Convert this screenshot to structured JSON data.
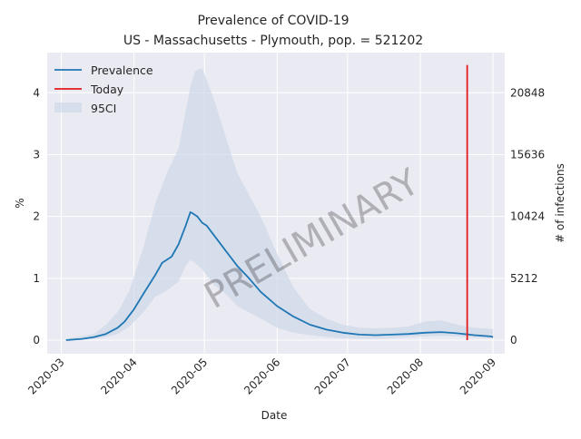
{
  "chart_data": {
    "type": "line",
    "title_line1": "Prevalence of COVID-19",
    "title_line2": "US - Massachusetts - Plymouth, pop. = 521202",
    "xlabel": "Date",
    "ylabel": "%",
    "ylabel_right": "# of infections",
    "watermark": "PRELIMINARY",
    "x_ticks": [
      "2020-03",
      "2020-04",
      "2020-05",
      "2020-06",
      "2020-07",
      "2020-08",
      "2020-09"
    ],
    "y_ticks": [
      0,
      1,
      2,
      3,
      4
    ],
    "y_ticks_right": [
      "0",
      "5212",
      "10424",
      "15636",
      "20848"
    ],
    "xlim": [
      "2020-02-24",
      "2020-09-06"
    ],
    "ylim": [
      -0.22,
      4.65
    ],
    "legend": {
      "placement": "top-left",
      "entries": [
        {
          "label": "Prevalence",
          "color": "#1f77b4",
          "kind": "line"
        },
        {
          "label": "Today",
          "color": "#e41a1c",
          "kind": "line"
        },
        {
          "label": "95CI",
          "color": "#c8d4e6",
          "kind": "patch"
        }
      ]
    },
    "today": {
      "date": "2020-08-21",
      "ymin": 0,
      "ymax": 4.45
    },
    "series": [
      {
        "name": "Prevalence",
        "color": "#1f77b4",
        "x": [
          "2020-03-03",
          "2020-03-10",
          "2020-03-15",
          "2020-03-20",
          "2020-03-25",
          "2020-03-28",
          "2020-04-01",
          "2020-04-05",
          "2020-04-10",
          "2020-04-13",
          "2020-04-17",
          "2020-04-20",
          "2020-04-23",
          "2020-04-25",
          "2020-04-26",
          "2020-04-28",
          "2020-04-30",
          "2020-05-02",
          "2020-05-04",
          "2020-05-07",
          "2020-05-10",
          "2020-05-15",
          "2020-05-20",
          "2020-05-25",
          "2020-06-01",
          "2020-06-08",
          "2020-06-15",
          "2020-06-22",
          "2020-06-29",
          "2020-07-06",
          "2020-07-13",
          "2020-07-20",
          "2020-07-27",
          "2020-08-03",
          "2020-08-10",
          "2020-08-17",
          "2020-08-24",
          "2020-08-31",
          "2020-09-01"
        ],
        "values": [
          0.0,
          0.02,
          0.05,
          0.1,
          0.2,
          0.3,
          0.5,
          0.75,
          1.05,
          1.25,
          1.35,
          1.55,
          1.85,
          2.07,
          2.05,
          2.0,
          1.9,
          1.85,
          1.75,
          1.6,
          1.45,
          1.2,
          1.0,
          0.78,
          0.55,
          0.38,
          0.25,
          0.17,
          0.12,
          0.09,
          0.08,
          0.09,
          0.1,
          0.12,
          0.13,
          0.11,
          0.08,
          0.06,
          0.05
        ]
      }
    ],
    "ci95": {
      "x": [
        "2020-03-03",
        "2020-03-15",
        "2020-03-20",
        "2020-03-25",
        "2020-03-30",
        "2020-04-05",
        "2020-04-10",
        "2020-04-15",
        "2020-04-20",
        "2020-04-23",
        "2020-04-25",
        "2020-04-27",
        "2020-04-30",
        "2020-05-05",
        "2020-05-10",
        "2020-05-15",
        "2020-05-20",
        "2020-05-25",
        "2020-06-01",
        "2020-06-08",
        "2020-06-15",
        "2020-06-22",
        "2020-06-29",
        "2020-07-06",
        "2020-07-13",
        "2020-07-20",
        "2020-07-27",
        "2020-08-03",
        "2020-08-10",
        "2020-08-17",
        "2020-08-24",
        "2020-09-01"
      ],
      "upper": [
        0.02,
        0.1,
        0.25,
        0.45,
        0.8,
        1.5,
        2.2,
        2.7,
        3.1,
        3.7,
        4.1,
        4.35,
        4.4,
        3.9,
        3.3,
        2.7,
        2.35,
        2.0,
        1.4,
        0.85,
        0.5,
        0.35,
        0.25,
        0.2,
        0.19,
        0.2,
        0.22,
        0.3,
        0.32,
        0.25,
        0.2,
        0.18
      ],
      "lower": [
        0.0,
        0.02,
        0.05,
        0.1,
        0.22,
        0.45,
        0.7,
        0.8,
        0.95,
        1.2,
        1.3,
        1.25,
        1.15,
        0.9,
        0.75,
        0.55,
        0.45,
        0.35,
        0.2,
        0.12,
        0.08,
        0.05,
        0.03,
        0.02,
        0.02,
        0.03,
        0.05,
        0.06,
        0.07,
        0.06,
        0.04,
        0.03
      ]
    }
  }
}
